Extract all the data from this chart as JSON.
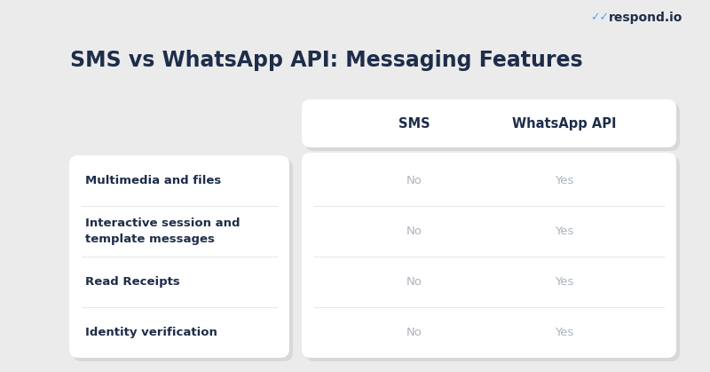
{
  "title": "SMS vs WhatsApp API: Messaging Features",
  "title_fontsize": 17,
  "title_color": "#1e2d4a",
  "background_color": "#ebebeb",
  "card_color": "#ffffff",
  "shadow_color": "#d8d8d8",
  "header_sms": "SMS",
  "header_whatsapp": "WhatsApp API",
  "header_fontsize": 10.5,
  "header_color": "#1e2d4a",
  "features": [
    "Multimedia and files",
    "Interactive session and\ntemplate messages",
    "Read Receipts",
    "Identity verification"
  ],
  "sms_values": [
    "No",
    "No",
    "No",
    "No"
  ],
  "whatsapp_values": [
    "Yes",
    "Yes",
    "Yes",
    "Yes"
  ],
  "feature_fontsize": 9.5,
  "feature_color": "#1e2d4a",
  "value_fontsize": 9.5,
  "no_color": "#aab4be",
  "yes_color": "#aab4be",
  "logo_text": "respond.io",
  "logo_color": "#1e2d4a",
  "logo_fontsize": 10,
  "tick_color": "#4da6ff",
  "divider_color": "#e8e8e8",
  "figsize": [
    8.0,
    4.19
  ],
  "dpi": 100
}
